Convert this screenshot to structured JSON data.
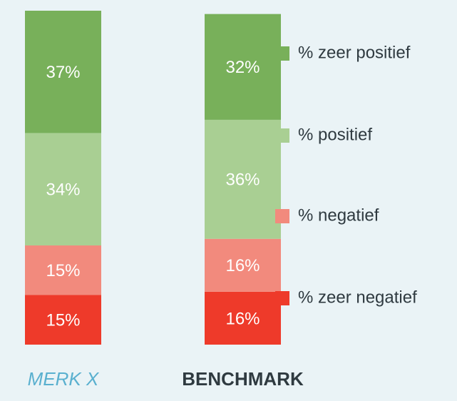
{
  "chart_data": {
    "type": "stacked-bar",
    "categories": [
      "MERK X",
      "BENCHMARK"
    ],
    "series": [
      {
        "name": "% zeer positief",
        "color": "#78b05a",
        "values": [
          37,
          32
        ],
        "value_labels": [
          "37%",
          "32%"
        ]
      },
      {
        "name": "% positief",
        "color": "#a9cf93",
        "values": [
          34,
          36
        ],
        "value_labels": [
          "34%",
          "36%"
        ]
      },
      {
        "name": "% negatief",
        "color": "#f28a7d",
        "values": [
          15,
          16
        ],
        "value_labels": [
          "15%",
          "16%"
        ]
      },
      {
        "name": "% zeer negatief",
        "color": "#ee3a2a",
        "values": [
          15,
          16
        ],
        "value_labels": [
          "15%",
          "16%"
        ]
      }
    ]
  }
}
